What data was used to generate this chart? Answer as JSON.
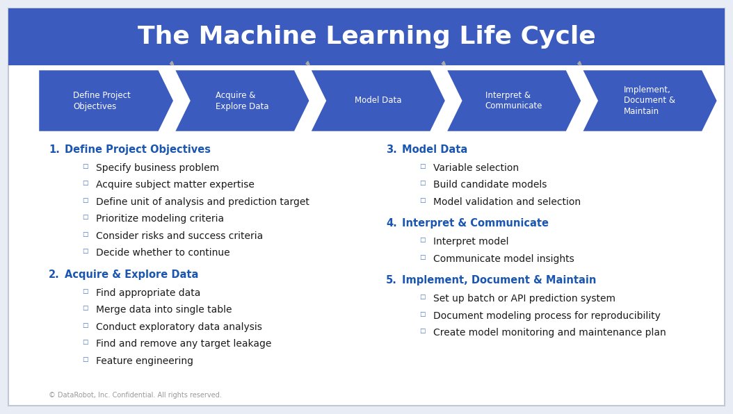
{
  "title": "The Machine Learning Life Cycle",
  "title_bg_color": "#3b5bbf",
  "title_text_color": "#ffffff",
  "bg_color": "#ffffff",
  "outer_bg_color": "#e8ecf5",
  "arrow_color": "#3b5bbf",
  "arrow_text_color": "#ffffff",
  "arrows": [
    "Define Project\nObjectives",
    "Acquire &\nExplore Data",
    "Model Data",
    "Interpret &\nCommunicate",
    "Implement,\nDocument &\nMaintain"
  ],
  "section_color": "#1a56b0",
  "bullet_color": "#4472c4",
  "bullet_char": "□",
  "left_sections": [
    {
      "number": "1.",
      "title": "Define Project Objectives",
      "items": [
        "Specify business problem",
        "Acquire subject matter expertise",
        "Define unit of analysis and prediction target",
        "Prioritize modeling criteria",
        "Consider risks and success criteria",
        "Decide whether to continue"
      ]
    },
    {
      "number": "2.",
      "title": "Acquire & Explore Data",
      "items": [
        "Find appropriate data",
        "Merge data into single table",
        "Conduct exploratory data analysis",
        "Find and remove any target leakage",
        "Feature engineering"
      ]
    }
  ],
  "right_sections": [
    {
      "number": "3.",
      "title": "Model Data",
      "items": [
        "Variable selection",
        "Build candidate models",
        "Model validation and selection"
      ]
    },
    {
      "number": "4.",
      "title": "Interpret & Communicate",
      "items": [
        "Interpret model",
        "Communicate model insights"
      ]
    },
    {
      "number": "5.",
      "title": "Implement, Document & Maintain",
      "items": [
        "Set up batch or API prediction system",
        "Document modeling process for reproducibility",
        "Create model monitoring and maintenance plan"
      ]
    }
  ],
  "footer": "© DataRobot, Inc. Confidential. All rights reserved.",
  "curve_arrow_color": "#aaaaaa"
}
